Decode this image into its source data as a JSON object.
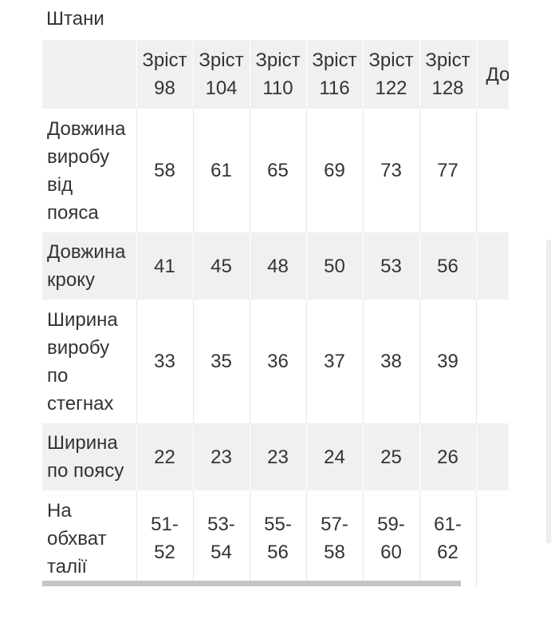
{
  "title": "Штани",
  "table": {
    "header": {
      "sizes": [
        {
          "line1": "Зріст",
          "line2": "98"
        },
        {
          "line1": "Зріст",
          "line2": "104"
        },
        {
          "line1": "Зріст",
          "line2": "110"
        },
        {
          "line1": "Зріст",
          "line2": "116"
        },
        {
          "line1": "Зріст",
          "line2": "122"
        },
        {
          "line1": "Зріст",
          "line2": "128"
        }
      ],
      "extra": "До"
    },
    "rows": [
      {
        "label": [
          "Довжина",
          "виробу",
          "від",
          "пояса"
        ],
        "values": [
          "58",
          "61",
          "65",
          "69",
          "73",
          "77"
        ]
      },
      {
        "label": [
          "Довжина",
          "кроку"
        ],
        "values": [
          "41",
          "45",
          "48",
          "50",
          "53",
          "56"
        ]
      },
      {
        "label": [
          "Ширина",
          "виробу",
          "по",
          "стегнах"
        ],
        "values": [
          "33",
          "35",
          "36",
          "37",
          "38",
          "39"
        ]
      },
      {
        "label": [
          "Ширина",
          "по поясу"
        ],
        "values": [
          "22",
          "23",
          "23",
          "24",
          "25",
          "26"
        ]
      },
      {
        "label": [
          "На",
          "обхват",
          "талії"
        ],
        "values": [
          [
            "51-",
            "52"
          ],
          [
            "53-",
            "54"
          ],
          [
            "55-",
            "56"
          ],
          [
            "57-",
            "58"
          ],
          [
            "59-",
            "60"
          ],
          [
            "61-",
            "62"
          ]
        ]
      }
    ]
  }
}
